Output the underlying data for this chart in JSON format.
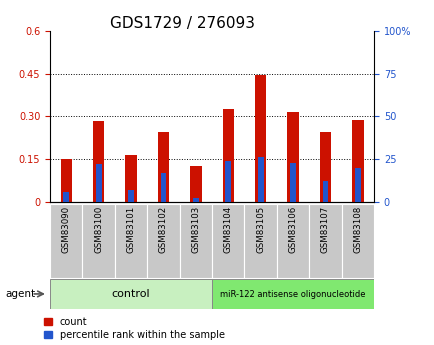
{
  "title": "GDS1729 / 276093",
  "samples": [
    "GSM83090",
    "GSM83100",
    "GSM83101",
    "GSM83102",
    "GSM83103",
    "GSM83104",
    "GSM83105",
    "GSM83106",
    "GSM83107",
    "GSM83108"
  ],
  "count_values": [
    0.152,
    0.285,
    0.163,
    0.245,
    0.127,
    0.325,
    0.447,
    0.315,
    0.245,
    0.288
  ],
  "percentile_values": [
    5.5,
    22.0,
    7.0,
    17.0,
    2.0,
    24.0,
    26.0,
    23.0,
    12.0,
    20.0
  ],
  "left_ylim": [
    0,
    0.6
  ],
  "left_yticks": [
    0,
    0.15,
    0.3,
    0.45,
    0.6
  ],
  "left_ytick_labels": [
    "0",
    "0.15",
    "0.30",
    "0.45",
    "0.6"
  ],
  "right_ylim": [
    0,
    100
  ],
  "right_yticks": [
    0,
    25,
    50,
    75,
    100
  ],
  "right_ytick_labels": [
    "0",
    "25",
    "50",
    "75",
    "100%"
  ],
  "bar_color": "#cc1100",
  "percentile_color": "#2255cc",
  "red_bar_width": 0.35,
  "blue_bar_width": 0.18,
  "control_label": "control",
  "treatment_label": "miR-122 antisense oligonucleotide",
  "agent_label": "agent",
  "legend_count": "count",
  "legend_percentile": "percentile rank within the sample",
  "control_bg": "#c8f0c0",
  "treatment_bg": "#80e870",
  "xticklabel_bg": "#c8c8c8",
  "plot_bg": "#ffffff",
  "title_fontsize": 11,
  "tick_fontsize": 7,
  "legend_fontsize": 7
}
